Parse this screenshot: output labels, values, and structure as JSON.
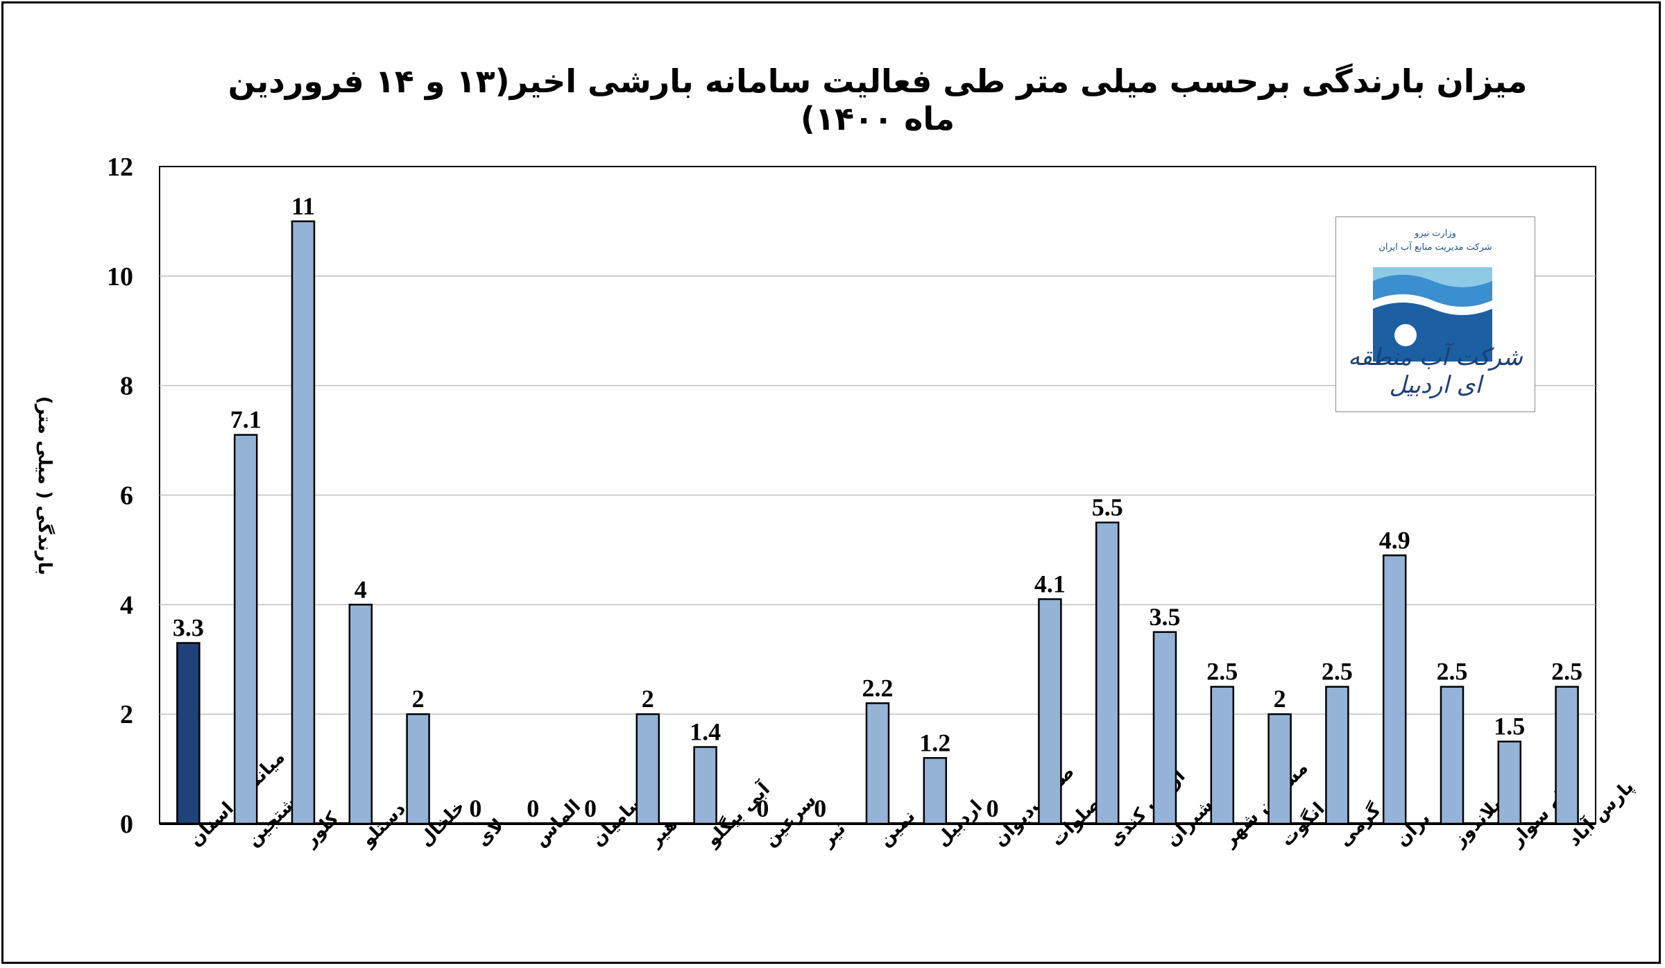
{
  "chart_data": {
    "type": "bar",
    "title": "میزان بارندگی برحسب میلی متر طی فعالیت سامانه بارشی اخیر(۱۳ و ۱۴ فروردین ماه ۱۴۰۰)",
    "xlabel": "",
    "ylabel": "بارندگی ( میلی متر)",
    "ylim": [
      0,
      12
    ],
    "yticks": [
      0,
      2,
      4,
      6,
      8,
      10,
      12
    ],
    "grid": true,
    "categories": [
      "میانگین استان",
      "هشتجین",
      "کلور",
      "پردستلو",
      "خلخال",
      "لای",
      "الماس",
      "سامیان",
      "هیر",
      "آبی بیگلو",
      "سرعین",
      "نیر",
      "نمین",
      "اردبیل",
      "صاحب‌دیوان",
      "صلوات",
      "ارباب کندی",
      "مشیران",
      "مشگین شهر",
      "انگوت",
      "گرمی",
      "بران",
      "اصلاندوز",
      "بیله سوار",
      "پارس آباد"
    ],
    "values": [
      3.3,
      7.1,
      11,
      4,
      2,
      0,
      0,
      0,
      2,
      1.4,
      0,
      0,
      2.2,
      1.2,
      0,
      4.1,
      5.5,
      3.5,
      2.5,
      2,
      2.5,
      4.9,
      2.5,
      1.5,
      2.5
    ],
    "labels": [
      "3.3",
      "7.1",
      "11",
      "4",
      "2",
      "0",
      "0",
      "0",
      "2",
      "1.4",
      "0",
      "0",
      "2.2",
      "1.2",
      "0",
      "4.1",
      "5.5",
      "3.5",
      "2.5",
      "2",
      "2.5",
      "4.9",
      "2.5",
      "1.5",
      "2.5"
    ],
    "highlight_index": 0,
    "colors": {
      "highlight": "#1f4278",
      "bar": "#95b3d7",
      "grid": "#c0c0c0",
      "axis": "#000000"
    }
  },
  "logo": {
    "top_text_1": "وزارت نیرو",
    "top_text_2": "شرکت مدیریت منابع آب ایران",
    "name": "شرکت آب منطقه ای اردبیل",
    "colors": {
      "light": "#8ecae6",
      "mid": "#3b8fd1",
      "dark": "#1d5fa3"
    }
  }
}
